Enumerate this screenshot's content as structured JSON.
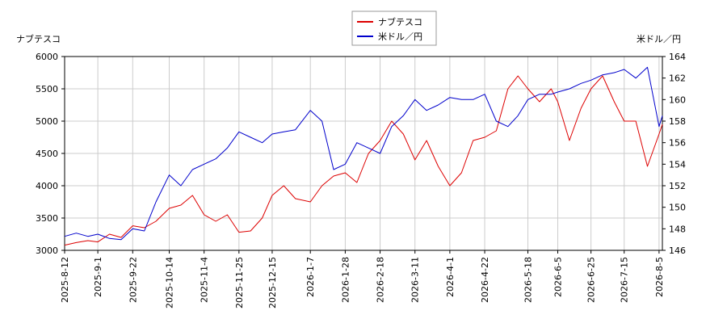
{
  "chart_data": {
    "type": "line",
    "title": "",
    "legend": {
      "placement": "top-center",
      "entries": [
        {
          "name": "ナブテスコ",
          "color": "#dd0000"
        },
        {
          "name": "米ドル／円",
          "color": "#0000cc"
        }
      ]
    },
    "y_left": {
      "label": "ナブテスコ",
      "range": [
        3000,
        6000
      ],
      "ticks": [
        "3000",
        "3500",
        "4000",
        "4500",
        "5000",
        "5500",
        "6000"
      ]
    },
    "y_right": {
      "label": "米ドル／円",
      "range": [
        146,
        164
      ],
      "ticks": [
        "146",
        "148",
        "150",
        "152",
        "154",
        "156",
        "158",
        "160",
        "162",
        "164"
      ]
    },
    "x_ticks": [
      "2025-8-12",
      "2025-9-1",
      "2025-9-22",
      "2025-10-14",
      "2025-11-4",
      "2025-11-25",
      "2025-12-15",
      "2026-1-7",
      "2026-1-28",
      "2026-2-18",
      "2026-3-11",
      "2026-4-1",
      "2026-4-22",
      "2026-5-18",
      "2026-6-5",
      "2026-6-25",
      "2026-7-15",
      "2026-8-5"
    ],
    "grid": true,
    "series": [
      {
        "name": "ナブテスコ",
        "axis": "left",
        "color": "#dd0000",
        "x": [
          "2025-8-12",
          "2025-8-19",
          "2025-8-26",
          "2025-9-1",
          "2025-9-8",
          "2025-9-15",
          "2025-9-22",
          "2025-9-29",
          "2025-10-6",
          "2025-10-14",
          "2025-10-21",
          "2025-10-28",
          "2025-11-4",
          "2025-11-11",
          "2025-11-18",
          "2025-11-25",
          "2025-12-2",
          "2025-12-9",
          "2025-12-15",
          "2025-12-22",
          "2025-12-29",
          "2026-1-7",
          "2026-1-14",
          "2026-1-21",
          "2026-1-28",
          "2026-2-4",
          "2026-2-11",
          "2026-2-18",
          "2026-2-25",
          "2026-3-4",
          "2026-3-11",
          "2026-3-18",
          "2026-3-25",
          "2026-4-1",
          "2026-4-8",
          "2026-4-15",
          "2026-4-22",
          "2026-4-29",
          "2026-5-6",
          "2026-5-12",
          "2026-5-18",
          "2026-5-25",
          "2026-6-1",
          "2026-6-5",
          "2026-6-12",
          "2026-6-19",
          "2026-6-25",
          "2026-7-2",
          "2026-7-9",
          "2026-7-15",
          "2026-7-22",
          "2026-7-29",
          "2026-8-5",
          "2026-8-7"
        ],
        "values": [
          3080,
          3120,
          3150,
          3130,
          3250,
          3200,
          3380,
          3350,
          3450,
          3650,
          3700,
          3850,
          3550,
          3450,
          3550,
          3280,
          3300,
          3500,
          3850,
          4000,
          3800,
          3750,
          4000,
          4150,
          4200,
          4050,
          4500,
          4700,
          5000,
          4800,
          4400,
          4700,
          4300,
          4000,
          4200,
          4700,
          4750,
          4850,
          5500,
          5700,
          5500,
          5300,
          5500,
          5300,
          4700,
          5200,
          5500,
          5700,
          5300,
          5000,
          5000,
          4300,
          4800,
          4950
        ]
      },
      {
        "name": "米ドル／円",
        "axis": "right",
        "color": "#0000cc",
        "x": [
          "2025-8-12",
          "2025-8-19",
          "2025-8-26",
          "2025-9-1",
          "2025-9-8",
          "2025-9-15",
          "2025-9-22",
          "2025-9-29",
          "2025-10-6",
          "2025-10-14",
          "2025-10-21",
          "2025-10-28",
          "2025-11-4",
          "2025-11-11",
          "2025-11-18",
          "2025-11-25",
          "2025-12-2",
          "2025-12-9",
          "2025-12-15",
          "2025-12-22",
          "2025-12-29",
          "2026-1-7",
          "2026-1-14",
          "2026-1-21",
          "2026-1-28",
          "2026-2-4",
          "2026-2-11",
          "2026-2-18",
          "2026-2-25",
          "2026-3-4",
          "2026-3-11",
          "2026-3-18",
          "2026-3-25",
          "2026-4-1",
          "2026-4-8",
          "2026-4-15",
          "2026-4-22",
          "2026-4-29",
          "2026-5-6",
          "2026-5-12",
          "2026-5-18",
          "2026-5-25",
          "2026-6-1",
          "2026-6-5",
          "2026-6-12",
          "2026-6-19",
          "2026-6-25",
          "2026-7-2",
          "2026-7-9",
          "2026-7-15",
          "2026-7-22",
          "2026-7-29",
          "2026-8-5",
          "2026-8-7"
        ],
        "values": [
          147.3,
          147.6,
          147.3,
          147.5,
          147.1,
          147.0,
          148.0,
          147.8,
          150.5,
          153.0,
          152.0,
          153.5,
          154.0,
          154.5,
          155.5,
          157.0,
          156.5,
          156.0,
          156.8,
          157.0,
          157.2,
          159.0,
          158.0,
          153.5,
          154.0,
          156.0,
          155.5,
          155.0,
          157.5,
          158.5,
          160.0,
          159.0,
          159.5,
          160.2,
          160.0,
          160.0,
          160.5,
          158.0,
          157.5,
          158.5,
          160.0,
          160.5,
          160.5,
          160.7,
          161.0,
          161.5,
          161.8,
          162.3,
          162.5,
          162.8,
          162.0,
          163.0,
          157.5,
          158.5
        ]
      }
    ]
  }
}
